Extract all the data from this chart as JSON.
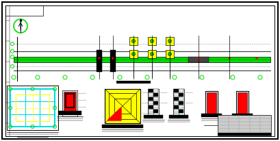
{
  "green": "#00dd00",
  "cyan": "#00dddd",
  "yellow": "#ffff00",
  "red": "#ff0000",
  "gray": "#999999",
  "lgray": "#cccccc",
  "black": "#000000",
  "white": "#ffffff",
  "dgray": "#444444"
}
